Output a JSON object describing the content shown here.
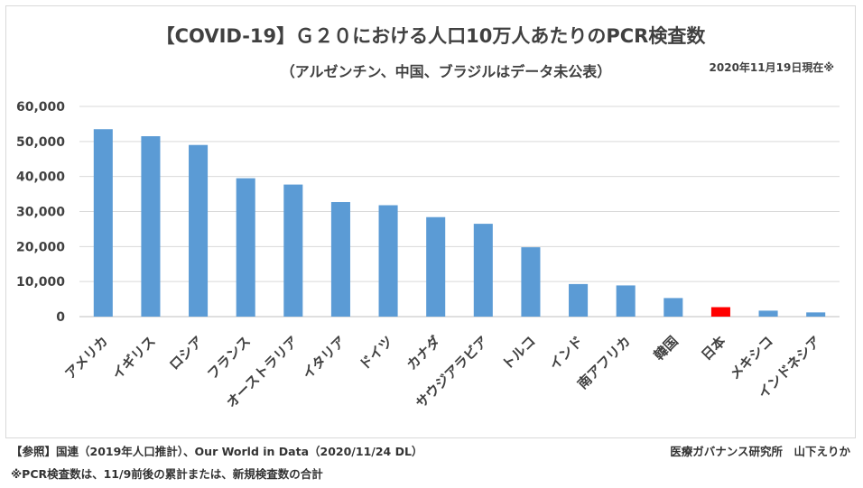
{
  "chart_data": {
    "type": "bar",
    "title": "【COVID-19】Ｇ２０における人口10万人あたりのPCR検査数",
    "subtitle": "（アルゼンチン、中国、ブラジルはデータ未公表）",
    "as_of": "2020年11月19日現在※",
    "categories": [
      "アメリカ",
      "イギリス",
      "ロシア",
      "フランス",
      "オーストラリア",
      "イタリア",
      "ドイツ",
      "カナダ",
      "サウジアラビア",
      "トルコ",
      "インド",
      "南アフリカ",
      "韓国",
      "日本",
      "メキシコ",
      "インドネシア"
    ],
    "values": [
      53500,
      51500,
      49000,
      39500,
      37700,
      32700,
      31800,
      28400,
      26500,
      19800,
      9300,
      8900,
      5300,
      2700,
      1700,
      1200
    ],
    "highlight_category": "日本",
    "ylim": [
      0,
      60000
    ],
    "yticks": [
      "0",
      "10,000",
      "20,000",
      "30,000",
      "40,000",
      "50,000",
      "60,000"
    ],
    "ytick_values": [
      0,
      10000,
      20000,
      30000,
      40000,
      50000,
      60000
    ],
    "grid": true,
    "xlabel": "",
    "ylabel": "",
    "colors": {
      "bar": "#5b9bd5",
      "highlight": "#ff0000",
      "grid": "#d9d9d9",
      "axis": "#bfbfbf"
    }
  },
  "footer": {
    "source": "【参照】国連（2019年人口推計）、Our World in Data（2020/11/24 DL）",
    "credit": "医療ガバナンス研究所　山下えりか",
    "note": "※PCR検査数は、11/9前後の累計または、新規検査数の合計"
  }
}
